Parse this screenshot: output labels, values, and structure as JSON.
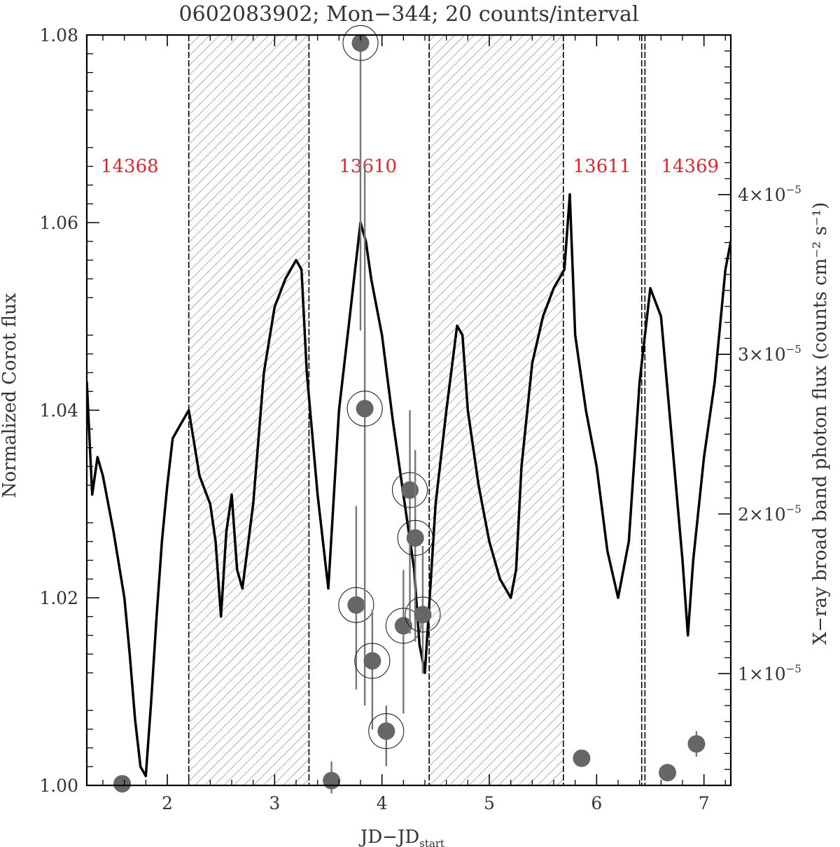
{
  "chart_data": {
    "type": "line",
    "title": "0602083902; Mon−344; 20 counts/interval",
    "xlabel": {
      "main": "JD−JD",
      "sub": "start"
    },
    "ylabel_left": "Normalized Corot flux",
    "ylabel_right": "X−ray broad band photon flux (counts cm⁻² s⁻¹)",
    "xlim": [
      1.25,
      7.25
    ],
    "ylim_left": [
      1.0,
      1.08
    ],
    "ylim_right": [
      3e-06,
      5e-05
    ],
    "x_ticks": [
      {
        "value": 2,
        "label": "2"
      },
      {
        "value": 3,
        "label": "3"
      },
      {
        "value": 4,
        "label": "4"
      },
      {
        "value": 5,
        "label": "5"
      },
      {
        "value": 6,
        "label": "6"
      },
      {
        "value": 7,
        "label": "7"
      }
    ],
    "y_ticks_left": [
      {
        "value": 1.0,
        "label": "1.00"
      },
      {
        "value": 1.02,
        "label": "1.02"
      },
      {
        "value": 1.04,
        "label": "1.04"
      },
      {
        "value": 1.06,
        "label": "1.06"
      },
      {
        "value": 1.08,
        "label": "1.08"
      }
    ],
    "y_ticks_right": [
      {
        "value": 1e-05,
        "mant": "1×10",
        "exp": "−5"
      },
      {
        "value": 2e-05,
        "mant": "2×10",
        "exp": "−5"
      },
      {
        "value": 3e-05,
        "mant": "3×10",
        "exp": "−5"
      },
      {
        "value": 4e-05,
        "mant": "4×10",
        "exp": "−5"
      }
    ],
    "grid": false,
    "colors": {
      "curve": "#000000",
      "xray_point": "#666666",
      "errorbar": "#777777",
      "hatch": "#bbbbbb",
      "obs_label": "#e8222a",
      "frame": "#000000"
    },
    "intervals": [
      {
        "id": "14368",
        "label_x": 1.65,
        "x0": 1.25,
        "x1": 2.2,
        "hatched": false
      },
      {
        "x0": 2.2,
        "x1": 3.32,
        "hatched": true
      },
      {
        "id": "13610",
        "label_x": 3.87,
        "x0": 3.32,
        "x1": 4.44,
        "hatched": false
      },
      {
        "x0": 4.44,
        "x1": 5.69,
        "hatched": true
      },
      {
        "id": "13611",
        "label_x": 6.05,
        "x0": 5.69,
        "x1": 6.44,
        "hatched": false
      },
      {
        "id": "14369",
        "label_x": 6.87,
        "x0": 6.44,
        "x1": 7.25,
        "hatched": false
      }
    ],
    "boundaries": [
      2.2,
      3.32,
      4.44,
      5.69,
      6.42,
      6.45
    ],
    "corot_flux": {
      "name": "Normalized Corot flux",
      "x": [
        1.25,
        1.3,
        1.35,
        1.4,
        1.5,
        1.6,
        1.65,
        1.7,
        1.75,
        1.8,
        1.85,
        1.9,
        1.95,
        2.0,
        2.05,
        2.1,
        2.2,
        2.3,
        2.4,
        2.45,
        2.5,
        2.55,
        2.6,
        2.65,
        2.7,
        2.8,
        2.9,
        3.0,
        3.1,
        3.2,
        3.25,
        3.3,
        3.4,
        3.5,
        3.6,
        3.7,
        3.75,
        3.8,
        3.85,
        3.9,
        4.0,
        4.1,
        4.2,
        4.3,
        4.35,
        4.4,
        4.45,
        4.5,
        4.6,
        4.7,
        4.75,
        4.8,
        4.9,
        5.0,
        5.1,
        5.2,
        5.25,
        5.3,
        5.4,
        5.5,
        5.6,
        5.7,
        5.75,
        5.8,
        5.9,
        6.0,
        6.1,
        6.2,
        6.3,
        6.4,
        6.5,
        6.6,
        6.7,
        6.8,
        6.85,
        6.9,
        7.0,
        7.1,
        7.2,
        7.25
      ],
      "y": [
        1.043,
        1.031,
        1.035,
        1.033,
        1.027,
        1.02,
        1.014,
        1.007,
        1.002,
        1.001,
        1.009,
        1.018,
        1.026,
        1.032,
        1.037,
        1.038,
        1.04,
        1.033,
        1.03,
        1.026,
        1.018,
        1.027,
        1.031,
        1.023,
        1.021,
        1.03,
        1.044,
        1.051,
        1.054,
        1.056,
        1.055,
        1.044,
        1.031,
        1.021,
        1.04,
        1.05,
        1.055,
        1.06,
        1.058,
        1.054,
        1.048,
        1.039,
        1.031,
        1.023,
        1.015,
        1.012,
        1.021,
        1.03,
        1.04,
        1.049,
        1.048,
        1.04,
        1.032,
        1.026,
        1.022,
        1.02,
        1.023,
        1.034,
        1.045,
        1.05,
        1.053,
        1.055,
        1.063,
        1.048,
        1.04,
        1.034,
        1.025,
        1.02,
        1.026,
        1.043,
        1.053,
        1.05,
        1.037,
        1.024,
        1.016,
        1.024,
        1.035,
        1.043,
        1.055,
        1.058
      ]
    },
    "xray_flux": {
      "name": "X−ray broad band photon flux",
      "points": [
        {
          "x": 1.58,
          "y": 3.1e-06,
          "lo": 3e-06,
          "hi": 3.5e-06,
          "circled": false
        },
        {
          "x": 3.53,
          "y": 3.3e-06,
          "lo": 2.5e-06,
          "hi": 4.5e-06,
          "circled": false
        },
        {
          "x": 3.76,
          "y": 1.43e-05,
          "lo": 9e-06,
          "hi": 2.05e-05,
          "circled": true
        },
        {
          "x": 3.8,
          "y": 4.95e-05,
          "lo": 3.15e-05,
          "hi": 5e-05,
          "circled": true
        },
        {
          "x": 3.84,
          "y": 2.66e-05,
          "lo": 8e-06,
          "hi": 4.2e-05,
          "circled": true
        },
        {
          "x": 3.91,
          "y": 1.08e-05,
          "lo": 6.5e-06,
          "hi": 1.4e-05,
          "circled": true
        },
        {
          "x": 4.04,
          "y": 6.4e-06,
          "lo": 4.2e-06,
          "hi": 8e-06,
          "circled": true
        },
        {
          "x": 4.2,
          "y": 1.3e-05,
          "lo": 7.5e-06,
          "hi": 1.65e-05,
          "circled": true
        },
        {
          "x": 4.26,
          "y": 2.15e-05,
          "lo": 1.25e-05,
          "hi": 2.65e-05,
          "circled": true
        },
        {
          "x": 4.31,
          "y": 1.85e-05,
          "lo": 1.2e-05,
          "hi": 2.4e-05,
          "circled": true
        },
        {
          "x": 4.38,
          "y": 1.37e-05,
          "lo": 1e-05,
          "hi": 1.8e-05,
          "circled": true
        },
        {
          "x": 5.86,
          "y": 4.7e-06,
          "lo": 4.2e-06,
          "hi": 5.2e-06,
          "circled": false
        },
        {
          "x": 6.66,
          "y": 3.8e-06,
          "lo": 3.4e-06,
          "hi": 4.3e-06,
          "circled": false
        },
        {
          "x": 6.93,
          "y": 5.6e-06,
          "lo": 4.8e-06,
          "hi": 6.4e-06,
          "circled": false
        }
      ]
    }
  }
}
